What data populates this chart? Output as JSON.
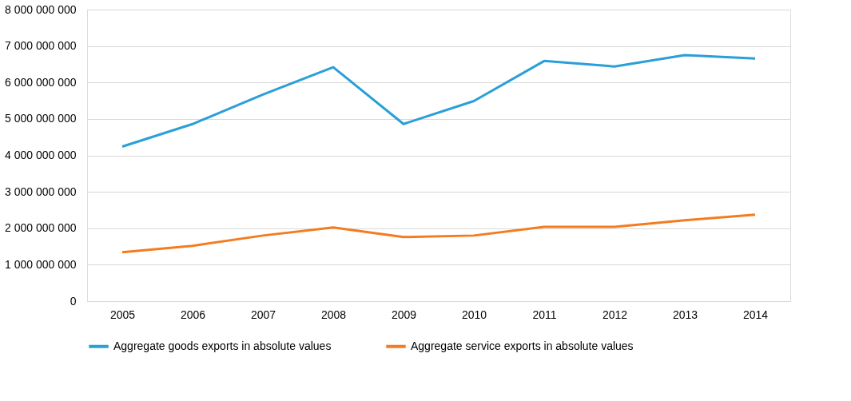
{
  "chart_data": {
    "type": "line",
    "categories": [
      "2005",
      "2006",
      "2007",
      "2008",
      "2009",
      "2010",
      "2011",
      "2012",
      "2013",
      "2014"
    ],
    "series": [
      {
        "name": "Aggregate goods exports in absolute values",
        "color": "#2a9fd8",
        "values": [
          4240000000,
          4860000000,
          5670000000,
          6420000000,
          4860000000,
          5490000000,
          6590000000,
          6440000000,
          6750000000,
          6660000000
        ]
      },
      {
        "name": "Aggregate service exports in absolute values",
        "color": "#f47c20",
        "values": [
          1340000000,
          1520000000,
          1800000000,
          2020000000,
          1760000000,
          1800000000,
          2040000000,
          2040000000,
          2220000000,
          2370000000
        ]
      }
    ],
    "ylim": [
      0,
      8000000000
    ],
    "yticks": [
      0,
      {
        "value": 1000000000,
        "label": "1 000 000 000"
      },
      {
        "value": 2000000000,
        "label": "2 000 000 000"
      },
      {
        "value": 3000000000,
        "label": "3 000 000 000"
      },
      {
        "value": 4000000000,
        "label": "4 000 000 000"
      },
      {
        "value": 5000000000,
        "label": "5 000 000 000"
      },
      {
        "value": 6000000000,
        "label": "6 000 000 000"
      },
      {
        "value": 7000000000,
        "label": "7 000 000 000"
      },
      {
        "value": 8000000000,
        "label": "8 000 000 000"
      }
    ],
    "grid": "y",
    "legend": "bottom",
    "marker": "none",
    "line_style": "solid"
  }
}
